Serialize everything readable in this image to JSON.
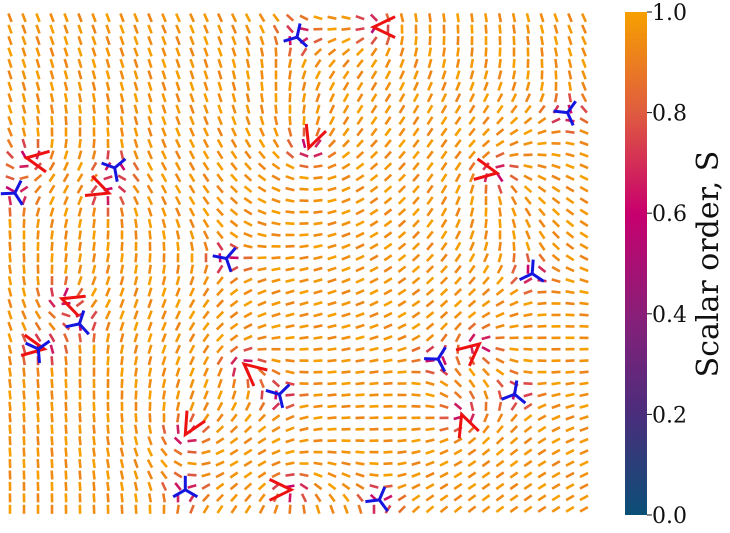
{
  "chart_data": {
    "type": "heatmap",
    "description_kind": "nematic director field with topological defects",
    "grid": {
      "cols": 42,
      "rows": 44
    },
    "colorbar": {
      "label": "Scalar order, S",
      "ticks": [
        "0.0",
        "0.2",
        "0.4",
        "0.6",
        "0.8",
        "1.0"
      ],
      "range": [
        0.0,
        1.0
      ],
      "colors": [
        "#0a4f76",
        "#4a2d7c",
        "#8a1f79",
        "#c8006e",
        "#df5c3f",
        "#f7a000"
      ]
    },
    "plus_half_defects": [
      {
        "x": 0.49,
        "y": 0.95,
        "angle": 0
      },
      {
        "x": 0.31,
        "y": 0.84,
        "angle": 120
      },
      {
        "x": 0.41,
        "y": 0.7,
        "angle": 220
      },
      {
        "x": 0.07,
        "y": 0.67,
        "angle": 10
      },
      {
        "x": 0.1,
        "y": 0.57,
        "angle": 200
      },
      {
        "x": 0.78,
        "y": 0.8,
        "angle": 250
      },
      {
        "x": 0.81,
        "y": 0.66,
        "angle": 320
      },
      {
        "x": 0.18,
        "y": 0.36,
        "angle": 20
      },
      {
        "x": 0.04,
        "y": 0.29,
        "angle": 190
      },
      {
        "x": 0.52,
        "y": 0.27,
        "angle": 110
      },
      {
        "x": 0.84,
        "y": 0.32,
        "angle": 10
      },
      {
        "x": 0.63,
        "y": 0.03,
        "angle": 180
      }
    ],
    "minus_half_defects": [
      {
        "x": 0.31,
        "y": 0.95
      },
      {
        "x": 0.64,
        "y": 0.97
      },
      {
        "x": 0.47,
        "y": 0.76
      },
      {
        "x": 0.87,
        "y": 0.76
      },
      {
        "x": 0.74,
        "y": 0.69
      },
      {
        "x": 0.06,
        "y": 0.67
      },
      {
        "x": 0.13,
        "y": 0.62
      },
      {
        "x": 0.38,
        "y": 0.49
      },
      {
        "x": 0.9,
        "y": 0.52
      },
      {
        "x": 0.02,
        "y": 0.36
      },
      {
        "x": 0.19,
        "y": 0.31
      },
      {
        "x": 0.5,
        "y": 0.05
      },
      {
        "x": 0.96,
        "y": 0.2
      }
    ]
  }
}
